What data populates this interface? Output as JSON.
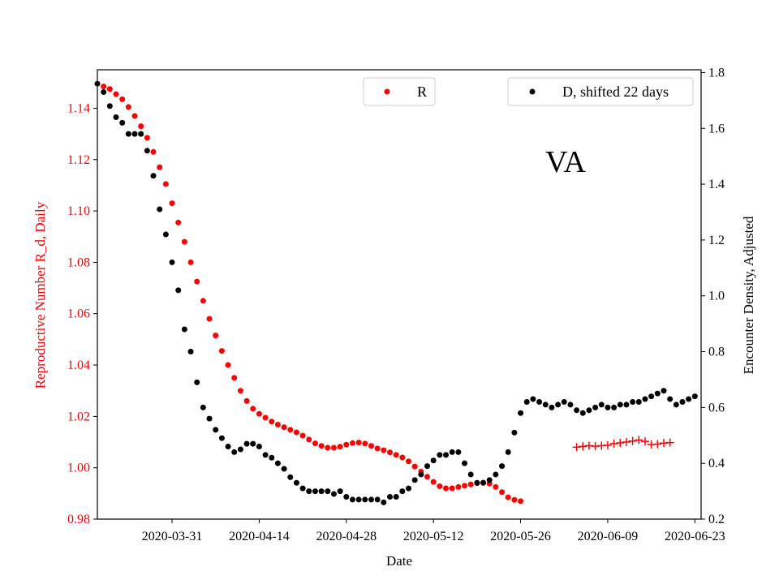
{
  "chart_data": {
    "type": "scatter",
    "annotation": "VA",
    "xlabel": "Date",
    "xtick_labels": [
      "2020-03-31",
      "2020-04-14",
      "2020-04-28",
      "2020-05-12",
      "2020-05-26",
      "2020-06-09",
      "2020-06-23"
    ],
    "xtick_days": [
      13,
      27,
      41,
      55,
      69,
      83,
      97
    ],
    "xlim_days": [
      1,
      98
    ],
    "x_origin_date": "2020-03-18",
    "left_axis": {
      "label": "Reproductive Number R_d, Daily",
      "color": "#ff0000",
      "ylim": [
        0.98,
        1.155
      ],
      "ticks": [
        0.98,
        1.0,
        1.02,
        1.04,
        1.06,
        1.08,
        1.1,
        1.12,
        1.14
      ],
      "tick_labels": [
        "0.98",
        "1.00",
        "1.02",
        "1.04",
        "1.06",
        "1.08",
        "1.10",
        "1.12",
        "1.14"
      ]
    },
    "right_axis": {
      "label": "Encounter Density, Adjusted",
      "color": "#000000",
      "ylim": [
        0.2,
        1.81
      ],
      "ticks": [
        0.2,
        0.4,
        0.6,
        0.8,
        1.0,
        1.2,
        1.4,
        1.6,
        1.8
      ],
      "tick_labels": [
        "0.2",
        "0.4",
        "0.6",
        "0.8",
        "1.0",
        "1.2",
        "1.4",
        "1.6",
        "1.8"
      ]
    },
    "legends": [
      {
        "label": "R",
        "color": "#ff0000",
        "marker": "dot",
        "position": "top-center"
      },
      {
        "label": "D, shifted 22 days",
        "color": "#000000",
        "marker": "dot",
        "position": "top-right"
      }
    ],
    "series": [
      {
        "name": "R",
        "axis": "left",
        "marker": "dot",
        "color": "#ff0000",
        "x_start_day": 1,
        "values": [
          1.1485,
          1.1475,
          1.1455,
          1.1435,
          1.1405,
          1.137,
          1.133,
          1.1285,
          1.123,
          1.117,
          1.1105,
          1.103,
          1.0955,
          1.088,
          1.08,
          1.0725,
          1.065,
          1.058,
          1.0515,
          1.0455,
          1.04,
          1.035,
          1.03,
          1.026,
          1.023,
          1.021,
          1.0195,
          1.018,
          1.0168,
          1.0158,
          1.0148,
          1.0138,
          1.0125,
          1.011,
          1.0095,
          1.0085,
          1.0078,
          1.0078,
          1.0082,
          1.009,
          1.0096,
          1.0098,
          1.0094,
          1.0085,
          1.0075,
          1.0068,
          1.006,
          1.005,
          1.004,
          1.0025,
          1.0005,
          0.9985,
          0.9965,
          0.9945,
          0.9928,
          0.992,
          0.992,
          0.9925,
          0.993,
          0.9935,
          0.994,
          0.9942,
          0.9938,
          0.9925,
          0.9905,
          0.9885,
          0.9875,
          0.987
        ],
        "x_start_day_note": "values indexed from day 2 (2020-03-19)"
      },
      {
        "name": "R (extended)",
        "axis": "left",
        "marker": "plus",
        "color": "#ff0000",
        "x_start_day": 78,
        "values": [
          1.008,
          1.0083,
          1.0086,
          1.0084,
          1.0086,
          1.0088,
          1.0094,
          1.0097,
          1.01,
          1.0104,
          1.0108,
          1.0103,
          1.0091,
          1.0092,
          1.0096,
          1.0098
        ]
      },
      {
        "name": "D, shifted 22 days",
        "axis": "right",
        "marker": "dot",
        "color": "#000000",
        "x_start_day": 1,
        "values": [
          1.76,
          1.73,
          1.68,
          1.64,
          1.62,
          1.58,
          1.58,
          1.58,
          1.52,
          1.43,
          1.31,
          1.22,
          1.12,
          1.02,
          0.88,
          0.8,
          0.69,
          0.6,
          0.56,
          0.52,
          0.49,
          0.46,
          0.44,
          0.45,
          0.47,
          0.47,
          0.46,
          0.43,
          0.42,
          0.4,
          0.38,
          0.35,
          0.33,
          0.31,
          0.3,
          0.3,
          0.3,
          0.3,
          0.29,
          0.3,
          0.28,
          0.27,
          0.27,
          0.27,
          0.27,
          0.27,
          0.26,
          0.28,
          0.28,
          0.3,
          0.31,
          0.34,
          0.36,
          0.39,
          0.41,
          0.43,
          0.43,
          0.44,
          0.44,
          0.4,
          0.36,
          0.33,
          0.33,
          0.34,
          0.36,
          0.39,
          0.44,
          0.51,
          0.58,
          0.62,
          0.63,
          0.62,
          0.61,
          0.6,
          0.61,
          0.62,
          0.61,
          0.59,
          0.58,
          0.59,
          0.6,
          0.61,
          0.6,
          0.6,
          0.61,
          0.61,
          0.62,
          0.62,
          0.63,
          0.64,
          0.65,
          0.66,
          0.63,
          0.61,
          0.62,
          0.63,
          0.64
        ]
      }
    ]
  }
}
